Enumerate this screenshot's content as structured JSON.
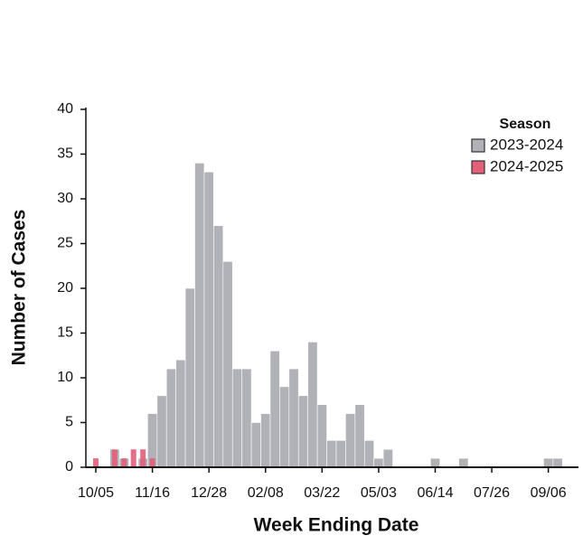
{
  "chart_data": {
    "type": "bar",
    "x_label": "Week Ending Date",
    "y_label": "Number of Cases",
    "legend_title": "Season",
    "categories": [
      "10/05",
      null,
      null,
      null,
      null,
      null,
      "11/16",
      null,
      null,
      null,
      null,
      null,
      "12/28",
      null,
      null,
      null,
      null,
      null,
      "02/08",
      null,
      null,
      null,
      null,
      null,
      "03/22",
      null,
      null,
      null,
      null,
      null,
      "05/03",
      null,
      null,
      null,
      null,
      null,
      "06/14",
      null,
      null,
      null,
      null,
      null,
      "07/26",
      null,
      null,
      null,
      null,
      null,
      "09/06",
      null
    ],
    "series": [
      {
        "name": "2023-2024",
        "color": "#b1b1b8",
        "values": [
          0,
          0,
          2,
          1,
          0,
          1,
          6,
          8,
          11,
          12,
          20,
          34,
          33,
          27,
          23,
          11,
          11,
          5,
          6,
          13,
          9,
          11,
          8,
          14,
          7,
          3,
          3,
          6,
          7,
          3,
          1,
          2,
          0,
          0,
          0,
          0,
          1,
          0,
          0,
          1,
          0,
          0,
          0,
          0,
          0,
          0,
          0,
          0,
          1,
          1
        ]
      },
      {
        "name": "2024-2025",
        "color": "#e35f7a",
        "values": [
          1,
          0,
          2,
          1,
          2,
          2,
          1,
          null,
          null,
          null,
          null,
          null,
          null,
          null,
          null,
          null,
          null,
          null,
          null,
          null,
          null,
          null,
          null,
          null,
          null,
          null,
          null,
          null,
          null,
          null,
          null,
          null,
          null,
          null,
          null,
          null,
          null,
          null,
          null,
          null,
          null,
          null,
          null,
          null,
          null,
          null,
          null,
          null,
          null,
          null
        ]
      }
    ],
    "ylim": [
      0,
      40
    ],
    "yticks": [
      0,
      5,
      10,
      15,
      20,
      25,
      30,
      35,
      40
    ],
    "legend": "top-right"
  }
}
